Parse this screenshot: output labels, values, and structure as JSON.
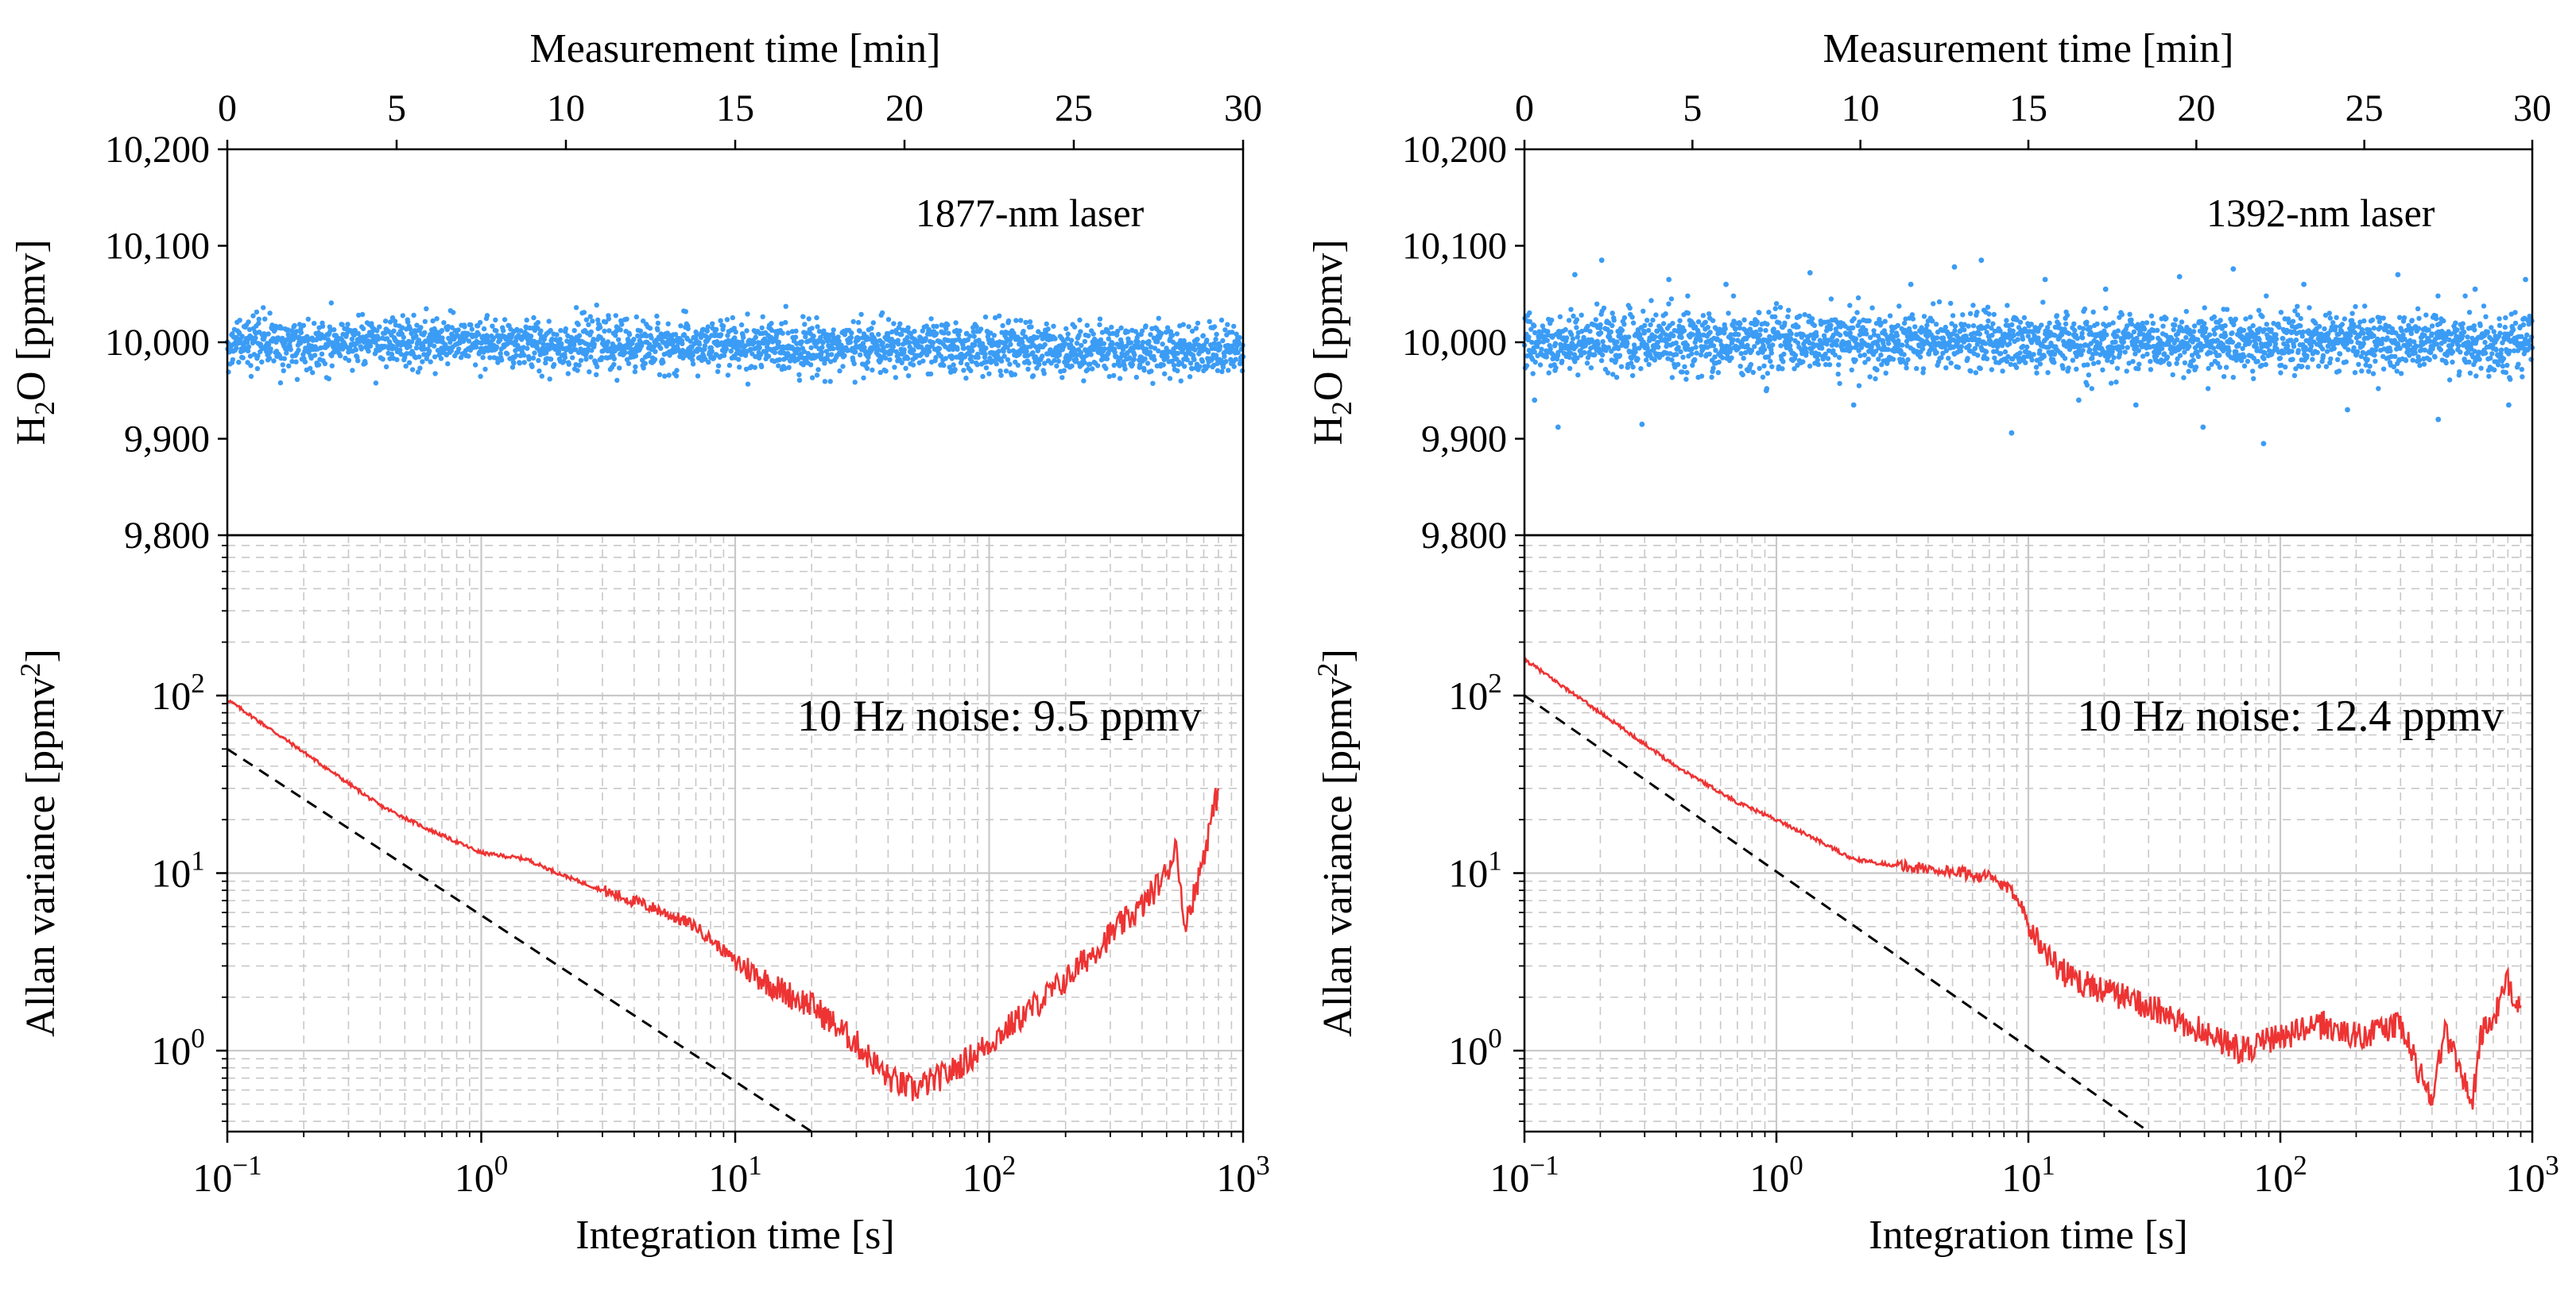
{
  "colors": {
    "scatter": "#3b9cf5",
    "allan": "#ee3333",
    "reference": "#000000",
    "grid": "#c8c8c8",
    "axis": "#000000"
  },
  "chart_data": [
    {
      "id": "left",
      "type": "scatter+line",
      "top_panel": {
        "type": "scatter",
        "xlabel": "Measurement time [min]",
        "xlim": [
          0,
          30
        ],
        "xticks": [
          "0",
          "5",
          "10",
          "15",
          "20",
          "25",
          "30"
        ],
        "ylabel_main": "H",
        "ylabel_sub": "2",
        "ylabel_rest": "O [ppmv]",
        "ylim": [
          9800,
          10200
        ],
        "yticks": [
          "9,800",
          "9,900",
          "10,000",
          "10,100",
          "10,200"
        ],
        "annotation": "1877-nm laser",
        "series": {
          "name": "H2O",
          "mean": 10000,
          "spread": 13,
          "mean_end": 9992,
          "outliers": []
        }
      },
      "bottom_panel": {
        "type": "line",
        "xscale": "log",
        "yscale": "log",
        "xlabel": "Integration time [s]",
        "xlim": [
          0.1,
          1000
        ],
        "xticks_base": [
          "10",
          "10",
          "10",
          "10",
          "10"
        ],
        "xticks_exp": [
          "−1",
          "0",
          "1",
          "2",
          "3"
        ],
        "ylabel_main": "Allan variance [ppmv",
        "ylabel_sup": "2",
        "ylabel_end": "]",
        "ylim": [
          0.35,
          800
        ],
        "yticks_base": [
          "10",
          "10",
          "10"
        ],
        "yticks_exp": [
          "0",
          "1",
          "2"
        ],
        "annotation": "10 Hz noise: 9.5 ppmv",
        "allan_curve": [
          [
            0.1,
            95
          ],
          [
            0.2,
            48
          ],
          [
            0.4,
            24
          ],
          [
            0.6,
            18
          ],
          [
            1,
            13
          ],
          [
            1.5,
            12
          ],
          [
            2,
            10
          ],
          [
            3,
            8
          ],
          [
            5,
            6.2
          ],
          [
            7,
            5.0
          ],
          [
            10,
            3.2
          ],
          [
            15,
            2.2
          ],
          [
            20,
            1.8
          ],
          [
            30,
            1.1
          ],
          [
            40,
            0.7
          ],
          [
            50,
            0.6
          ],
          [
            70,
            0.75
          ],
          [
            100,
            1.1
          ],
          [
            200,
            2.5
          ],
          [
            300,
            4.5
          ],
          [
            400,
            6.5
          ],
          [
            500,
            10
          ],
          [
            550,
            15
          ],
          [
            580,
            5
          ],
          [
            650,
            8
          ],
          [
            800,
            30
          ]
        ],
        "reference_line": [
          [
            0.1,
            50
          ],
          [
            20,
            0.35
          ]
        ]
      }
    },
    {
      "id": "right",
      "type": "scatter+line",
      "top_panel": {
        "type": "scatter",
        "xlabel": "Measurement time [min]",
        "xlim": [
          0,
          30
        ],
        "xticks": [
          "0",
          "5",
          "10",
          "15",
          "20",
          "25",
          "30"
        ],
        "ylabel_main": "H",
        "ylabel_sub": "2",
        "ylabel_rest": "O [ppmv]",
        "ylim": [
          9800,
          10200
        ],
        "yticks": [
          "9,800",
          "9,900",
          "10,000",
          "10,100",
          "10,200"
        ],
        "annotation": "1392-nm laser",
        "series": {
          "name": "H2O",
          "mean": 10000,
          "spread": 15,
          "mean_end": 10000,
          "outliers": [
            [
              0.3,
              9940
            ],
            [
              1.0,
              9912
            ],
            [
              1.5,
              10070
            ],
            [
              2.3,
              10085
            ],
            [
              3.5,
              9915
            ],
            [
              4.3,
              10065
            ],
            [
              6.0,
              10060
            ],
            [
              7.2,
              9950
            ],
            [
              8.5,
              10072
            ],
            [
              9.8,
              9935
            ],
            [
              11.5,
              10060
            ],
            [
              12.8,
              10078
            ],
            [
              13.6,
              10085
            ],
            [
              14.5,
              9906
            ],
            [
              15.5,
              10065
            ],
            [
              16.5,
              9940
            ],
            [
              17.3,
              10055
            ],
            [
              18.2,
              9935
            ],
            [
              19.5,
              10068
            ],
            [
              20.2,
              9912
            ],
            [
              21.1,
              10076
            ],
            [
              22.0,
              9895
            ],
            [
              23.2,
              10060
            ],
            [
              24.5,
              9930
            ],
            [
              26.0,
              10070
            ],
            [
              27.2,
              9920
            ],
            [
              28.3,
              10055
            ],
            [
              29.3,
              9935
            ],
            [
              29.8,
              10065
            ]
          ]
        }
      },
      "bottom_panel": {
        "type": "line",
        "xscale": "log",
        "yscale": "log",
        "xlabel": "Integration time [s]",
        "xlim": [
          0.1,
          1000
        ],
        "xticks_base": [
          "10",
          "10",
          "10",
          "10",
          "10"
        ],
        "xticks_exp": [
          "−1",
          "0",
          "1",
          "2",
          "3"
        ],
        "ylabel_main": "Allan variance [ppmv",
        "ylabel_sup": "2",
        "ylabel_end": "]",
        "ylim": [
          0.35,
          800
        ],
        "yticks_base": [
          "10",
          "10",
          "10"
        ],
        "yticks_exp": [
          "0",
          "1",
          "2"
        ],
        "annotation": "10 Hz noise: 12.4 ppmv",
        "allan_curve": [
          [
            0.1,
            160
          ],
          [
            0.2,
            80
          ],
          [
            0.4,
            40
          ],
          [
            0.7,
            25
          ],
          [
            1,
            20
          ],
          [
            1.5,
            15
          ],
          [
            2,
            12
          ],
          [
            3,
            11
          ],
          [
            5,
            10.2
          ],
          [
            7,
            9.5
          ],
          [
            9,
            7.5
          ],
          [
            11,
            4.0
          ],
          [
            13,
            3.0
          ],
          [
            15,
            2.5
          ],
          [
            20,
            2.2
          ],
          [
            30,
            1.8
          ],
          [
            40,
            1.4
          ],
          [
            50,
            1.3
          ],
          [
            70,
            1.0
          ],
          [
            100,
            1.2
          ],
          [
            150,
            1.4
          ],
          [
            200,
            1.2
          ],
          [
            300,
            1.4
          ],
          [
            350,
            0.8
          ],
          [
            400,
            0.55
          ],
          [
            450,
            1.3
          ],
          [
            500,
            0.9
          ],
          [
            580,
            0.5
          ],
          [
            620,
            1.2
          ],
          [
            700,
            1.5
          ],
          [
            800,
            2.4
          ],
          [
            900,
            1.8
          ]
        ],
        "reference_line": [
          [
            0.1,
            100
          ],
          [
            30,
            0.35
          ]
        ]
      }
    }
  ]
}
